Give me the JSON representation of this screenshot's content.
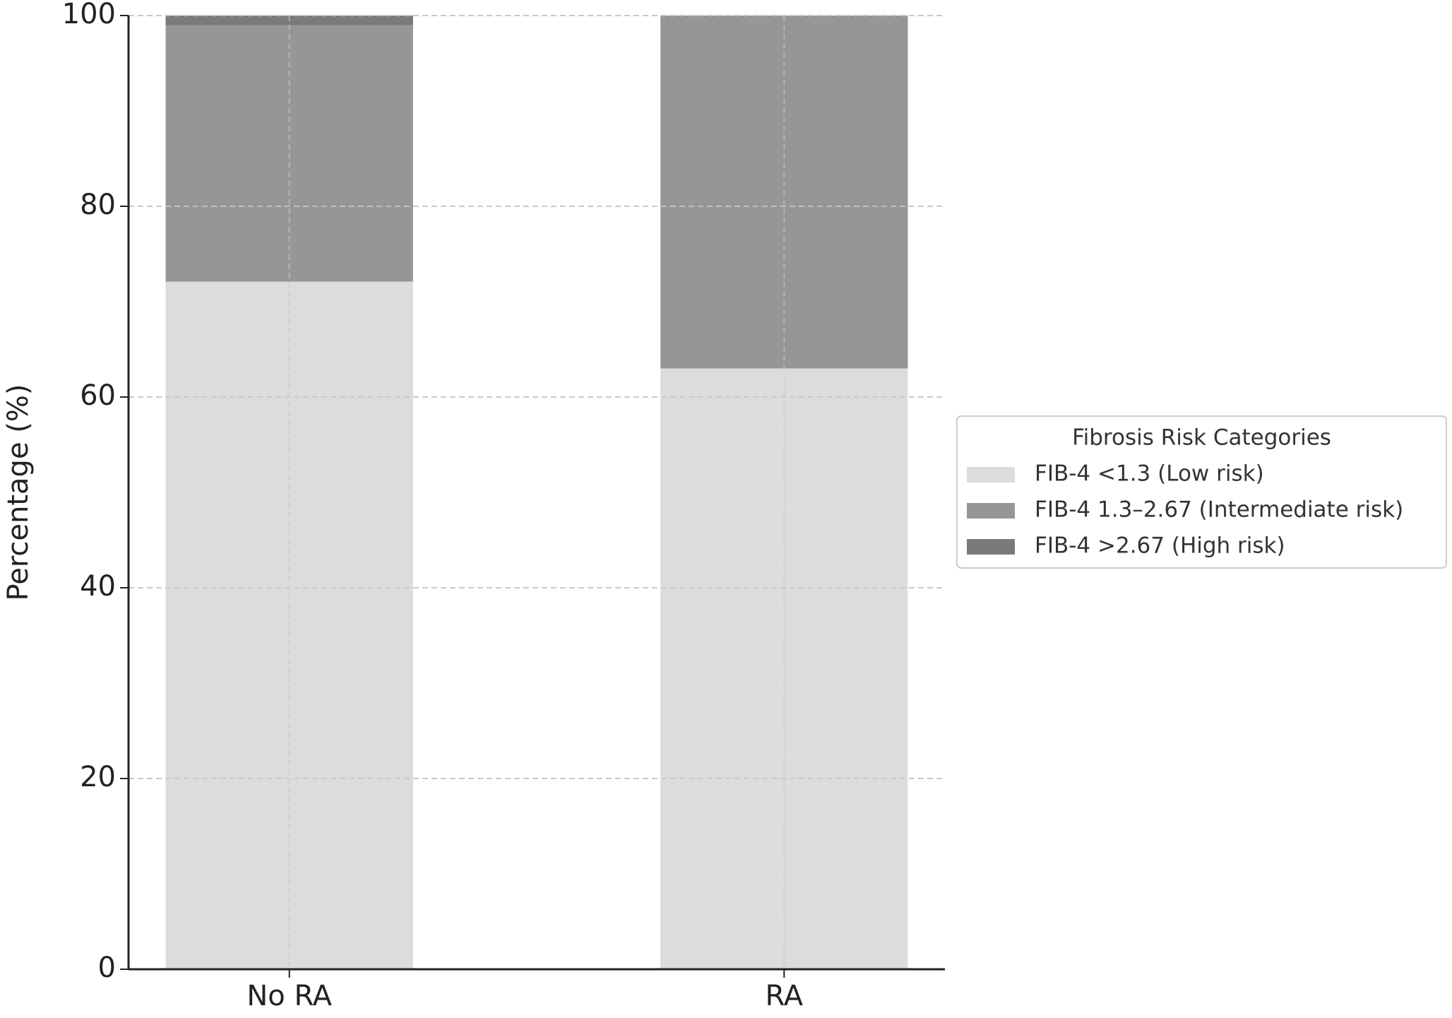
{
  "chart_data": {
    "type": "stacked_bar",
    "y_label": "Percentage (%)",
    "legend_title": "Fibrosis Risk Categories",
    "legend_position": "right",
    "grid": true,
    "categories": [
      "No RA",
      "RA"
    ],
    "series": [
      {
        "name": "FIB-4 <1.3 (Low risk)",
        "color": "#dcdcdc",
        "values": [
          72.1,
          63.0
        ]
      },
      {
        "name": "FIB-4 1.3–2.67 (Intermediate risk)",
        "color": "#969696",
        "values": [
          26.9,
          37.0
        ]
      },
      {
        "name": "FIB-4 >2.67 (High risk)",
        "color": "#7a7a7a",
        "values": [
          1.0,
          0
        ]
      }
    ],
    "ylim": [
      0,
      100
    ],
    "yticks": [
      0,
      20,
      40,
      60,
      80,
      100
    ]
  }
}
